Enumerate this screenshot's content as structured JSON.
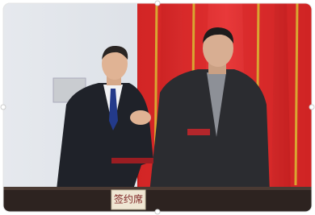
{
  "image": {
    "placard": "签约席"
  }
}
